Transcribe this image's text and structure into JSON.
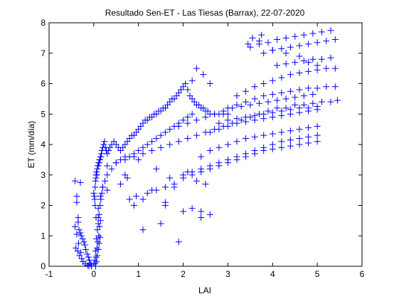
{
  "chart_data": {
    "type": "scatter",
    "title": "Resultado Sen-ET - Las Tiesas (Barrax), 22-07-2020",
    "xlabel": "LAI",
    "ylabel": "ET (mm/día)",
    "xlim": [
      -1,
      6
    ],
    "ylim": [
      0,
      8
    ],
    "xticks": [
      -1,
      0,
      1,
      2,
      3,
      4,
      5,
      6
    ],
    "yticks": [
      0,
      1,
      2,
      3,
      4,
      5,
      6,
      7,
      8
    ],
    "marker": "+",
    "color": "#0000ff",
    "grid": false,
    "legend": "none",
    "x": [
      -0.42,
      -0.38,
      -0.35,
      -0.33,
      -0.3,
      -0.28,
      -0.25,
      -0.22,
      -0.2,
      -0.18,
      -0.15,
      -0.12,
      -0.1,
      -0.08,
      -0.06,
      -0.05,
      -0.4,
      -0.36,
      -0.32,
      -0.27,
      -0.24,
      -0.19,
      -0.14,
      -0.11,
      -0.42,
      -0.38,
      -0.34,
      -0.29,
      0.0,
      0.01,
      0.02,
      0.03,
      0.03,
      0.04,
      0.05,
      0.05,
      0.06,
      0.07,
      0.08,
      0.09,
      0.1,
      0.11,
      0.12,
      0.13,
      0.14,
      0.15,
      0.16,
      0.17,
      0.18,
      0.2,
      0.22,
      0.24,
      0.26,
      0.28,
      0.3,
      0.33,
      0.36,
      0.4,
      0.45,
      0.5,
      0.55,
      0.6,
      0.65,
      0.7,
      0.75,
      0.8,
      0.85,
      0.9,
      0.95,
      1.0,
      1.05,
      1.1,
      1.15,
      1.2,
      1.25,
      1.3,
      1.35,
      1.4,
      1.45,
      1.5,
      1.55,
      1.6,
      1.65,
      1.7,
      1.75,
      1.8,
      1.85,
      1.9,
      1.95,
      2.0,
      2.05,
      2.1,
      2.15,
      2.2,
      2.25,
      2.3,
      2.35,
      2.4,
      2.45,
      2.5,
      2.55,
      2.6,
      2.7,
      2.8,
      2.9,
      3.0,
      0.05,
      0.1,
      0.15,
      0.2,
      0.25,
      0.3,
      0.4,
      0.5,
      0.6,
      0.7,
      0.8,
      0.9,
      1.0,
      1.1,
      1.2,
      1.3,
      1.4,
      1.5,
      1.6,
      1.7,
      1.8,
      1.9,
      2.0,
      2.1,
      2.2,
      0.02,
      0.04,
      0.06,
      0.08,
      0.1,
      0.12,
      0.14,
      0.16,
      0.18,
      0.2,
      0.03,
      0.05,
      0.07,
      0.09,
      0.11,
      0.13,
      0.15,
      0.04,
      0.06,
      0.08,
      0.1,
      0.12,
      0.14,
      0.3,
      0.5,
      0.7,
      0.9,
      1.1,
      1.3,
      1.5,
      1.7,
      1.9,
      2.1,
      2.3,
      2.5,
      2.7,
      2.9,
      3.1,
      3.3,
      3.5,
      3.7,
      3.9,
      4.1,
      4.3,
      4.5,
      4.7,
      4.9,
      5.1,
      5.3,
      5.45,
      3.5,
      3.7,
      3.9,
      4.1,
      4.3,
      4.5,
      4.7,
      4.9,
      5.1,
      5.3,
      3.8,
      4.0,
      4.2,
      4.4,
      4.6,
      4.8,
      5.0,
      5.2,
      5.4,
      4.1,
      4.3,
      4.5,
      4.7,
      4.9,
      5.1,
      5.3,
      3.2,
      3.4,
      3.6,
      3.8,
      4.0,
      4.2,
      4.4,
      4.6,
      4.8,
      5.0,
      5.2,
      5.4,
      3.0,
      3.2,
      3.4,
      3.6,
      3.8,
      4.0,
      4.2,
      4.4,
      4.6,
      4.8,
      5.0,
      5.2,
      5.4,
      2.8,
      3.0,
      3.2,
      3.4,
      3.6,
      3.8,
      4.0,
      4.2,
      4.4,
      4.6,
      4.8,
      5.0,
      2.6,
      2.8,
      3.0,
      3.2,
      3.4,
      3.6,
      3.8,
      4.0,
      4.2,
      4.4,
      4.6,
      4.8,
      5.0,
      2.4,
      2.6,
      2.8,
      3.0,
      3.2,
      3.4,
      3.6,
      3.8,
      4.0,
      4.2,
      4.4,
      4.6,
      4.8,
      5.0,
      1.2,
      1.4,
      1.6,
      1.8,
      2.0,
      2.2,
      2.4,
      2.6,
      2.8,
      3.0,
      3.2,
      3.4,
      3.6,
      3.8,
      4.0,
      4.2,
      4.4,
      4.6,
      4.8,
      5.0,
      1.9,
      2.1,
      2.3,
      2.5,
      2.7,
      2.9,
      3.1,
      3.3,
      3.5,
      3.7,
      3.9,
      4.1,
      4.3,
      4.5,
      4.7,
      4.9,
      2.0,
      2.2,
      2.4,
      2.6,
      2.8,
      3.0,
      3.2,
      3.4,
      3.6,
      3.8,
      4.0,
      4.2,
      4.4,
      4.6,
      4.8,
      5.0,
      1.0,
      1.4,
      1.8,
      2.2,
      2.4,
      2.6,
      2.3,
      2.5,
      2.1,
      1.7,
      1.3,
      0.9,
      1.1,
      1.5,
      1.9,
      0.7,
      0.75,
      -0.3,
      -0.38,
      -0.35,
      0.1,
      2.2,
      2.45,
      2.6,
      2.3,
      1.6,
      1.1,
      0.95,
      0.6,
      3.55,
      3.7,
      3.45,
      3.75,
      4.0,
      4.3,
      4.6,
      4.8,
      5.0,
      0.3,
      0.8,
      1.6,
      2.0,
      2.4
    ],
    "y": [
      2.8,
      2.3,
      1.6,
      1.2,
      1.1,
      1.0,
      0.9,
      0.8,
      0.7,
      0.55,
      0.4,
      0.3,
      0.2,
      0.1,
      0.05,
      0.0,
      0.6,
      0.5,
      0.35,
      0.25,
      0.15,
      0.08,
      0.03,
      0.01,
      1.3,
      1.05,
      0.75,
      0.45,
      2.4,
      2.3,
      2.2,
      2.0,
      2.6,
      2.8,
      2.9,
      3.0,
      3.1,
      3.0,
      3.2,
      3.3,
      3.3,
      3.4,
      3.4,
      3.5,
      3.5,
      3.6,
      3.6,
      3.7,
      3.8,
      3.9,
      4.0,
      4.1,
      3.9,
      3.8,
      3.7,
      3.8,
      3.9,
      4.0,
      4.1,
      4.0,
      3.9,
      3.8,
      3.9,
      4.0,
      4.1,
      4.2,
      4.3,
      4.3,
      4.4,
      4.5,
      4.6,
      4.7,
      4.8,
      4.8,
      4.9,
      4.9,
      5.0,
      5.0,
      5.1,
      5.1,
      5.2,
      5.2,
      5.3,
      5.4,
      5.5,
      5.5,
      5.6,
      5.7,
      5.8,
      5.9,
      6.0,
      5.8,
      5.6,
      5.5,
      5.4,
      5.3,
      5.3,
      5.2,
      5.2,
      5.1,
      5.1,
      5.0,
      5.0,
      5.0,
      5.0,
      5.0,
      1.6,
      1.9,
      2.3,
      2.6,
      2.8,
      3.0,
      3.2,
      3.4,
      3.5,
      3.6,
      3.6,
      3.7,
      3.8,
      3.9,
      4.0,
      4.1,
      4.2,
      4.3,
      4.4,
      4.5,
      4.6,
      4.7,
      4.8,
      4.9,
      5.0,
      0.2,
      0.5,
      0.9,
      1.2,
      1.4,
      1.7,
      2.0,
      2.2,
      2.4,
      2.6,
      0.1,
      0.3,
      0.6,
      0.8,
      1.0,
      1.3,
      1.5,
      0.0,
      0.15,
      0.35,
      0.55,
      0.75,
      0.95,
      3.3,
      3.4,
      3.5,
      3.6,
      3.7,
      3.8,
      3.9,
      4.0,
      4.1,
      4.2,
      4.3,
      4.4,
      4.5,
      4.6,
      4.7,
      4.8,
      4.9,
      5.0,
      5.1,
      5.2,
      5.2,
      5.3,
      5.3,
      5.35,
      5.4,
      5.4,
      5.45,
      7.2,
      7.3,
      7.35,
      7.45,
      7.5,
      7.55,
      7.6,
      7.65,
      7.7,
      7.75,
      7.0,
      7.1,
      7.15,
      7.2,
      7.25,
      7.3,
      7.35,
      7.4,
      7.45,
      6.6,
      6.65,
      6.7,
      6.75,
      6.8,
      6.8,
      6.85,
      5.6,
      5.75,
      5.9,
      6.0,
      6.1,
      6.2,
      6.3,
      6.35,
      6.4,
      6.45,
      6.5,
      6.5,
      5.2,
      5.3,
      5.4,
      5.5,
      5.6,
      5.65,
      5.7,
      5.75,
      5.8,
      5.85,
      5.85,
      5.9,
      5.9,
      4.7,
      4.8,
      4.85,
      4.9,
      4.95,
      5.0,
      5.05,
      5.1,
      5.15,
      5.2,
      5.2,
      5.25,
      4.4,
      4.5,
      4.6,
      4.7,
      4.75,
      4.8,
      4.85,
      4.9,
      4.95,
      5.0,
      5.05,
      5.1,
      5.15,
      3.6,
      3.8,
      3.9,
      4.0,
      4.1,
      4.2,
      4.25,
      4.3,
      4.35,
      4.4,
      4.45,
      4.5,
      4.55,
      4.6,
      2.4,
      2.5,
      2.6,
      2.7,
      2.9,
      3.0,
      3.1,
      3.2,
      3.3,
      3.4,
      3.5,
      3.6,
      3.7,
      3.8,
      3.85,
      3.9,
      3.95,
      4.0,
      4.05,
      4.1,
      4.6,
      4.7,
      4.8,
      4.9,
      5.0,
      5.1,
      5.2,
      5.25,
      5.3,
      5.35,
      5.4,
      5.45,
      5.5,
      5.55,
      5.6,
      5.65,
      3.0,
      3.1,
      3.2,
      3.3,
      3.4,
      3.5,
      3.6,
      3.7,
      3.8,
      3.9,
      4.0,
      4.1,
      4.15,
      4.2,
      4.25,
      4.3,
      3.5,
      3.2,
      2.6,
      1.9,
      1.8,
      1.7,
      2.8,
      2.7,
      3.1,
      2.9,
      2.5,
      2.0,
      1.2,
      1.4,
      0.8,
      3.0,
      2.9,
      2.75,
      2.1,
      1.45,
      1.6,
      6.1,
      6.3,
      6.0,
      6.5,
      2.0,
      2.2,
      2.3,
      2.7,
      7.5,
      7.4,
      7.3,
      7.6,
      7.1,
      7.0,
      6.9,
      6.7,
      6.6,
      2.5,
      2.2,
      2.1,
      1.8,
      1.6
    ]
  }
}
